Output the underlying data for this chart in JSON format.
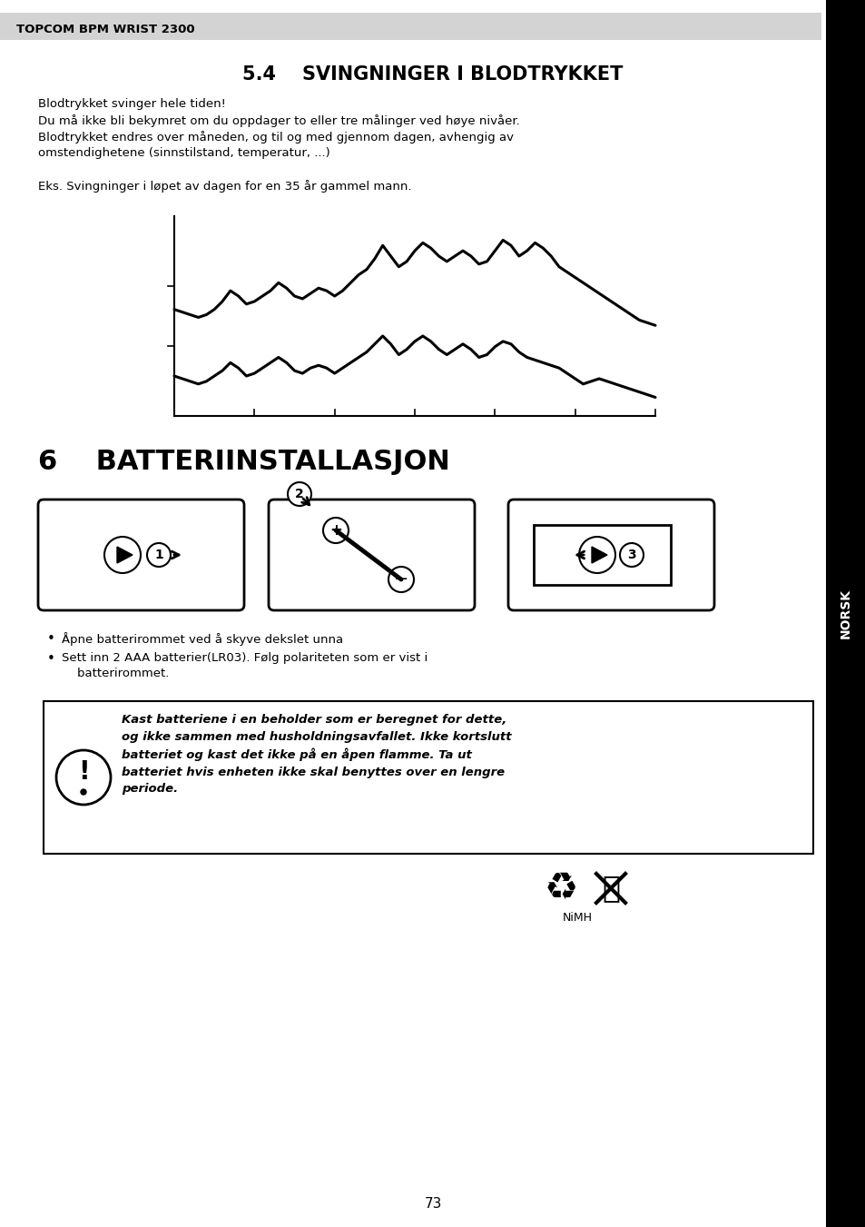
{
  "header_text": "TOPCOM BPM WRIST 2300",
  "header_bg": "#d3d3d3",
  "section_title": "5.4    SVINGNINGER I BLODTRYKKET",
  "body_text1a": "Blodtrykket svinger hele tiden!",
  "body_text1b": "Du må ikke bli bekymret om du oppdager to eller tre målinger ved høye nivåer.",
  "body_text1c": "Blodtrykket endres over måneden, og til og med gjennom dagen, avhengig av",
  "body_text1d": "omstendighetene (sinnstilstand, temperatur, ...)",
  "body_text2": "Eks. Svingninger i løpet av dagen for en 35 år gammel mann.",
  "section2_title": "6    BATTERIINSTALLASJON",
  "bullet1": "Åpne batterirommet ved å skyve dekslet unna",
  "bullet2a": "Sett inn 2 AAA batterier(LR03). Følg polariteten som er vist i",
  "bullet2b": "    batterirommet.",
  "warning_text": "Kast batteriene i en beholder som er beregnet for dette,\nog ikke sammen med husholdningsavfallet. Ikke kortslutt\nbatteriet og kast det ikke på en åpen flamme. Ta ut\nbatteriet hvis enheten ikke skal benyttes over en lengre\nperiode.",
  "nimh_text": "NiMH",
  "page_number": "73",
  "sidebar_text": "NORSK",
  "sidebar_bg": "#000000",
  "sidebar_text_color": "#ffffff",
  "upper_curve_x": [
    0,
    1,
    2,
    3,
    4,
    5,
    6,
    7,
    8,
    9,
    10,
    11,
    12,
    13,
    14,
    15,
    16,
    17,
    18,
    19,
    20,
    21,
    22,
    23,
    24,
    25,
    26,
    27,
    28,
    29,
    30,
    31,
    32,
    33,
    34,
    35,
    36,
    37,
    38,
    39,
    40,
    41,
    42,
    43,
    44,
    45,
    46,
    47,
    48,
    49,
    50,
    51,
    52,
    53,
    54,
    55,
    56,
    57,
    58,
    59,
    60
  ],
  "upper_curve_y": [
    60,
    59,
    58,
    57,
    58,
    60,
    63,
    67,
    65,
    62,
    63,
    65,
    67,
    70,
    68,
    65,
    64,
    66,
    68,
    67,
    65,
    67,
    70,
    73,
    75,
    79,
    84,
    80,
    76,
    78,
    82,
    85,
    83,
    80,
    78,
    80,
    82,
    80,
    77,
    78,
    82,
    86,
    84,
    80,
    82,
    85,
    83,
    80,
    76,
    74,
    72,
    70,
    68,
    66,
    64,
    62,
    60,
    58,
    56,
    55,
    54
  ],
  "lower_curve_x": [
    0,
    1,
    2,
    3,
    4,
    5,
    6,
    7,
    8,
    9,
    10,
    11,
    12,
    13,
    14,
    15,
    16,
    17,
    18,
    19,
    20,
    21,
    22,
    23,
    24,
    25,
    26,
    27,
    28,
    29,
    30,
    31,
    32,
    33,
    34,
    35,
    36,
    37,
    38,
    39,
    40,
    41,
    42,
    43,
    44,
    45,
    46,
    47,
    48,
    49,
    50,
    51,
    52,
    53,
    54,
    55,
    56,
    57,
    58,
    59,
    60
  ],
  "lower_curve_y": [
    35,
    34,
    33,
    32,
    33,
    35,
    37,
    40,
    38,
    35,
    36,
    38,
    40,
    42,
    40,
    37,
    36,
    38,
    39,
    38,
    36,
    38,
    40,
    42,
    44,
    47,
    50,
    47,
    43,
    45,
    48,
    50,
    48,
    45,
    43,
    45,
    47,
    45,
    42,
    43,
    46,
    48,
    47,
    44,
    42,
    41,
    40,
    39,
    38,
    36,
    34,
    32,
    33,
    34,
    33,
    32,
    31,
    30,
    29,
    28,
    27
  ],
  "bg_color": "#ffffff",
  "text_color": "#000000"
}
